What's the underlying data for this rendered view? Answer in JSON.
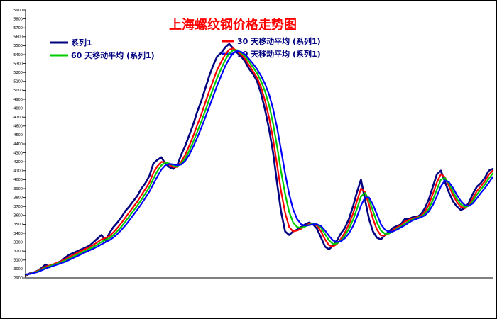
{
  "chart_data": {
    "type": "line",
    "title": "上海螺纹钢价格走势图",
    "xlabel": "",
    "ylabel": "",
    "ylim": [
      2900,
      5900
    ],
    "yticks": [
      2900,
      3000,
      3100,
      3200,
      3300,
      3400,
      3500,
      3600,
      3700,
      3800,
      3900,
      4000,
      4100,
      4200,
      4300,
      4400,
      4500,
      4600,
      4700,
      4800,
      4900,
      5000,
      5100,
      5200,
      5300,
      5400,
      5500,
      5600,
      5700,
      5800,
      5900
    ],
    "x_categories": [],
    "grid": false,
    "legend_placement": "top",
    "series": [
      {
        "name": "系列1",
        "color": "#000080",
        "values": [
          2920,
          2950,
          2960,
          2980,
          3010,
          3050,
          3020,
          3050,
          3070,
          3090,
          3130,
          3160,
          3180,
          3200,
          3220,
          3240,
          3260,
          3300,
          3340,
          3380,
          3320,
          3400,
          3470,
          3520,
          3580,
          3650,
          3700,
          3760,
          3820,
          3900,
          3960,
          4040,
          4180,
          4220,
          4250,
          4180,
          4140,
          4120,
          4160,
          4280,
          4380,
          4500,
          4620,
          4760,
          4880,
          5020,
          5160,
          5280,
          5380,
          5420,
          5480,
          5520,
          5470,
          5420,
          5380,
          5320,
          5240,
          5180,
          5100,
          4960,
          4780,
          4560,
          4300,
          3960,
          3640,
          3420,
          3380,
          3420,
          3440,
          3470,
          3500,
          3520,
          3500,
          3450,
          3350,
          3250,
          3220,
          3260,
          3320,
          3400,
          3460,
          3560,
          3700,
          3860,
          4000,
          3780,
          3560,
          3420,
          3350,
          3330,
          3380,
          3420,
          3460,
          3480,
          3500,
          3560,
          3560,
          3580,
          3580,
          3610,
          3680,
          3780,
          3920,
          4060,
          4100,
          3980,
          3860,
          3760,
          3700,
          3660,
          3680,
          3740,
          3840,
          3920,
          3960,
          4020,
          4100,
          4120
        ]
      },
      {
        "name": "30 天移动平均 (系列1)",
        "color": "#ff0000",
        "values": [
          2930,
          2948,
          2962,
          2978,
          3000,
          3028,
          3040,
          3055,
          3070,
          3088,
          3110,
          3135,
          3160,
          3182,
          3205,
          3225,
          3245,
          3270,
          3300,
          3330,
          3348,
          3368,
          3410,
          3460,
          3515,
          3575,
          3635,
          3695,
          3755,
          3825,
          3895,
          3965,
          4075,
          4150,
          4198,
          4195,
          4165,
          4140,
          4142,
          4200,
          4280,
          4380,
          4490,
          4610,
          4730,
          4860,
          4990,
          5110,
          5230,
          5320,
          5400,
          5455,
          5470,
          5440,
          5400,
          5350,
          5280,
          5210,
          5140,
          5030,
          4880,
          4690,
          4450,
          4160,
          3870,
          3630,
          3470,
          3420,
          3430,
          3450,
          3480,
          3505,
          3510,
          3485,
          3420,
          3330,
          3265,
          3250,
          3280,
          3340,
          3410,
          3500,
          3620,
          3760,
          3900,
          3860,
          3720,
          3560,
          3440,
          3375,
          3375,
          3400,
          3435,
          3465,
          3490,
          3530,
          3550,
          3565,
          3578,
          3595,
          3640,
          3720,
          3840,
          3970,
          4060,
          4030,
          3930,
          3830,
          3750,
          3695,
          3680,
          3715,
          3790,
          3870,
          3925,
          3980,
          4055,
          4100
        ]
      },
      {
        "name": "60 天移动平均 (系列1)",
        "color": "#00cc00",
        "values": [
          2935,
          2945,
          2958,
          2972,
          2992,
          3015,
          3030,
          3045,
          3060,
          3076,
          3095,
          3118,
          3140,
          3162,
          3184,
          3205,
          3226,
          3248,
          3274,
          3302,
          3325,
          3345,
          3380,
          3425,
          3475,
          3530,
          3590,
          3650,
          3710,
          3775,
          3845,
          3915,
          4010,
          4095,
          4160,
          4190,
          4180,
          4160,
          4150,
          4180,
          4240,
          4325,
          4425,
          4535,
          4650,
          4770,
          4900,
          5020,
          5140,
          5245,
          5340,
          5410,
          5450,
          5450,
          5420,
          5380,
          5320,
          5255,
          5190,
          5100,
          4985,
          4830,
          4625,
          4370,
          4090,
          3840,
          3640,
          3520,
          3470,
          3460,
          3475,
          3495,
          3505,
          3500,
          3460,
          3390,
          3320,
          3280,
          3285,
          3320,
          3375,
          3450,
          3550,
          3675,
          3810,
          3850,
          3780,
          3650,
          3520,
          3430,
          3395,
          3395,
          3420,
          3450,
          3475,
          3505,
          3535,
          3555,
          3570,
          3585,
          3615,
          3675,
          3770,
          3890,
          4000,
          4020,
          3960,
          3870,
          3785,
          3725,
          3695,
          3705,
          3760,
          3830,
          3890,
          3945,
          4010,
          4070
        ]
      },
      {
        "name": "90 天移动平均 (系列1)",
        "color": "#0000ff",
        "values": [
          2940,
          2944,
          2954,
          2966,
          2984,
          3004,
          3020,
          3035,
          3050,
          3065,
          3082,
          3102,
          3124,
          3145,
          3166,
          3187,
          3208,
          3228,
          3250,
          3276,
          3300,
          3322,
          3352,
          3392,
          3438,
          3488,
          3545,
          3605,
          3665,
          3728,
          3795,
          3865,
          3950,
          4035,
          4110,
          4160,
          4175,
          4170,
          4160,
          4170,
          4210,
          4280,
          4370,
          4470,
          4580,
          4695,
          4815,
          4935,
          5055,
          5165,
          5270,
          5355,
          5415,
          5440,
          5430,
          5400,
          5350,
          5295,
          5235,
          5160,
          5070,
          4950,
          4790,
          4580,
          4330,
          4070,
          3840,
          3670,
          3560,
          3500,
          3485,
          3490,
          3500,
          3500,
          3480,
          3430,
          3370,
          3320,
          3300,
          3310,
          3345,
          3400,
          3480,
          3585,
          3710,
          3800,
          3800,
          3720,
          3610,
          3500,
          3440,
          3415,
          3420,
          3440,
          3465,
          3490,
          3520,
          3545,
          3562,
          3578,
          3600,
          3645,
          3715,
          3815,
          3925,
          3990,
          3975,
          3910,
          3830,
          3760,
          3715,
          3705,
          3735,
          3790,
          3850,
          3905,
          3965,
          4030
        ]
      }
    ]
  }
}
